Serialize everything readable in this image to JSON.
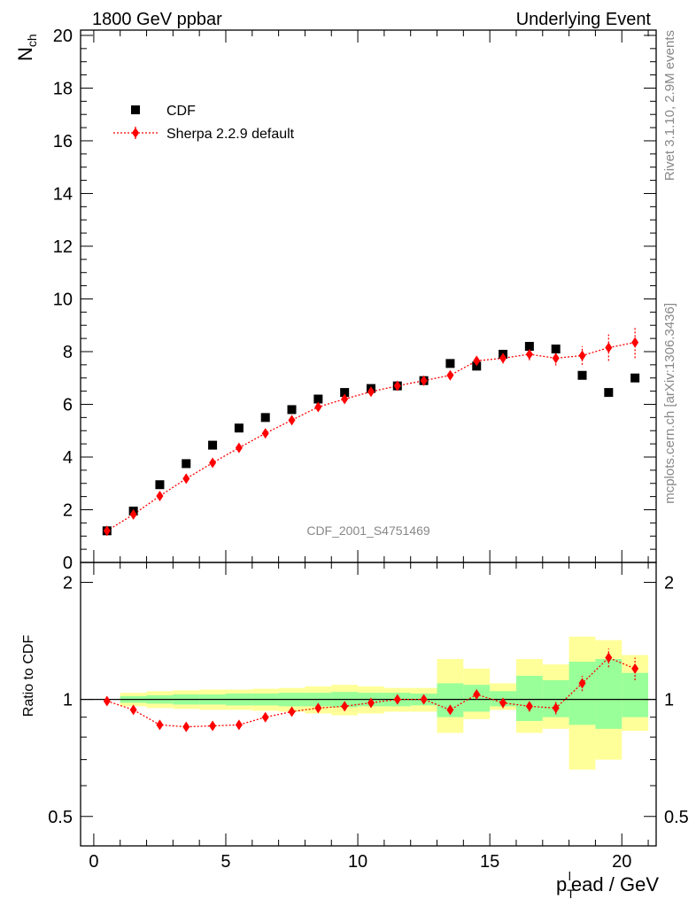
{
  "header": {
    "left": "1800 GeV ppbar",
    "right": "Underlying Event"
  },
  "side_text": {
    "rivet": "Rivet 3.1.10,  2.9M events",
    "mcplots": "mcplots.cern.ch [arXiv:1306.3436]"
  },
  "watermark": "CDF_2001_S4751469",
  "chart_data": [
    {
      "type": "scatter",
      "ylabel_main": "N",
      "ylabel_sub": "ch",
      "xlim": [
        -0.5,
        21.3
      ],
      "ylim": [
        0,
        20.2
      ],
      "yticks": [
        0,
        2,
        4,
        6,
        8,
        10,
        12,
        14,
        16,
        18,
        20
      ],
      "legend": {
        "position": "top-left",
        "entries": [
          "CDF",
          "Sherpa 2.2.9 default"
        ]
      },
      "colors": {
        "data": "#000000",
        "mc": "#ff0000"
      },
      "x": [
        0.5,
        1.5,
        2.5,
        3.5,
        4.5,
        5.5,
        6.5,
        7.5,
        8.5,
        9.5,
        10.5,
        11.5,
        12.5,
        13.5,
        14.5,
        15.5,
        16.5,
        17.5,
        18.5,
        19.5,
        20.5
      ],
      "series": [
        {
          "name": "CDF",
          "values": [
            1.2,
            1.95,
            2.95,
            3.75,
            4.45,
            5.1,
            5.5,
            5.8,
            6.2,
            6.45,
            6.6,
            6.7,
            6.9,
            7.55,
            7.45,
            7.9,
            8.2,
            8.1,
            7.1,
            6.45,
            7.0
          ]
        },
        {
          "name": "Sherpa 2.2.9 default",
          "values": [
            1.2,
            1.82,
            2.52,
            3.18,
            3.78,
            4.35,
            4.9,
            5.4,
            5.9,
            6.2,
            6.48,
            6.7,
            6.9,
            7.1,
            7.65,
            7.75,
            7.9,
            7.75,
            7.85,
            8.15,
            8.35
          ],
          "errors": [
            0.03,
            0.03,
            0.04,
            0.05,
            0.05,
            0.06,
            0.06,
            0.07,
            0.08,
            0.09,
            0.1,
            0.12,
            0.13,
            0.15,
            0.17,
            0.2,
            0.23,
            0.27,
            0.35,
            0.5,
            0.6
          ]
        }
      ]
    },
    {
      "type": "scatter",
      "ylabel": "Ratio to CDF",
      "ylim": [
        0.42,
        2.25
      ],
      "yticks": [
        0.5,
        1,
        2
      ],
      "xlabel_main": "p",
      "xlabel_sub": "T",
      "xlabel_sup": "l",
      "xlabel_rest": "ead / GeV",
      "xticks": [
        0,
        5,
        10,
        15,
        20
      ],
      "band_edges": [
        0,
        1,
        2,
        3,
        4,
        5,
        6,
        7,
        8,
        9,
        10,
        11,
        12,
        13,
        14,
        15,
        16,
        17,
        18,
        19,
        20,
        21
      ],
      "bands": {
        "yellow": [
          [
            1.0,
            1.0
          ],
          [
            0.96,
            1.04
          ],
          [
            0.95,
            1.05
          ],
          [
            0.945,
            1.055
          ],
          [
            0.94,
            1.06
          ],
          [
            0.94,
            1.06
          ],
          [
            0.935,
            1.065
          ],
          [
            0.93,
            1.07
          ],
          [
            0.92,
            1.08
          ],
          [
            0.91,
            1.09
          ],
          [
            0.92,
            1.08
          ],
          [
            0.93,
            1.07
          ],
          [
            0.93,
            1.07
          ],
          [
            0.82,
            1.27
          ],
          [
            0.89,
            1.2
          ],
          [
            0.94,
            1.1
          ],
          [
            0.82,
            1.27
          ],
          [
            0.84,
            1.23
          ],
          [
            0.66,
            1.45
          ],
          [
            0.7,
            1.42
          ],
          [
            0.83,
            1.3
          ]
        ],
        "green": [
          [
            1.0,
            1.0
          ],
          [
            0.98,
            1.02
          ],
          [
            0.975,
            1.025
          ],
          [
            0.97,
            1.03
          ],
          [
            0.97,
            1.03
          ],
          [
            0.965,
            1.035
          ],
          [
            0.965,
            1.035
          ],
          [
            0.96,
            1.04
          ],
          [
            0.96,
            1.04
          ],
          [
            0.955,
            1.045
          ],
          [
            0.96,
            1.04
          ],
          [
            0.96,
            1.04
          ],
          [
            0.965,
            1.035
          ],
          [
            0.9,
            1.1
          ],
          [
            0.93,
            1.09
          ],
          [
            0.96,
            1.05
          ],
          [
            0.88,
            1.15
          ],
          [
            0.9,
            1.12
          ],
          [
            0.86,
            1.25
          ],
          [
            0.84,
            1.27
          ],
          [
            0.9,
            1.17
          ]
        ]
      },
      "ratio": [
        0.99,
        0.94,
        0.86,
        0.85,
        0.855,
        0.86,
        0.9,
        0.93,
        0.95,
        0.96,
        0.98,
        1.0,
        1.0,
        0.94,
        1.03,
        0.98,
        0.96,
        0.95,
        1.1,
        1.28,
        1.2
      ],
      "ratio_errors": [
        0.01,
        0.01,
        0.01,
        0.01,
        0.01,
        0.01,
        0.01,
        0.01,
        0.01,
        0.01,
        0.015,
        0.015,
        0.02,
        0.02,
        0.025,
        0.03,
        0.03,
        0.035,
        0.05,
        0.07,
        0.08
      ]
    }
  ]
}
